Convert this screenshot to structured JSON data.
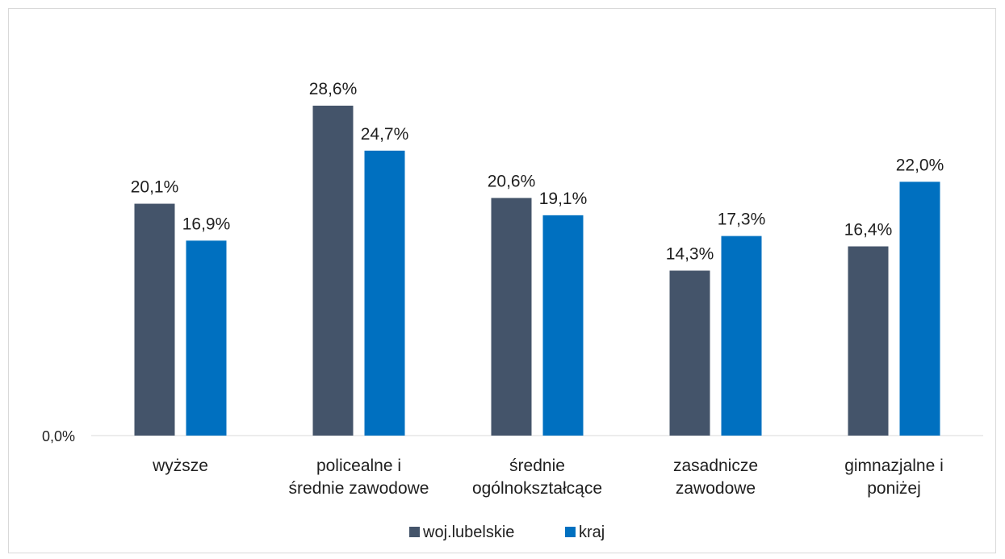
{
  "chart_data": {
    "type": "bar",
    "categories": [
      [
        "wyższe"
      ],
      [
        "policealne i",
        "średnie zawodowe"
      ],
      [
        "średnie",
        "ogólnokształcące"
      ],
      [
        "zasadnicze",
        "zawodowe"
      ],
      [
        "gimnazjalne i",
        "poniżej"
      ]
    ],
    "series": [
      {
        "name": "woj.lubelskie",
        "color": "#44546a",
        "values": [
          20.1,
          28.6,
          20.6,
          14.3,
          16.4
        ],
        "labels": [
          "20,1%",
          "28,6%",
          "20,6%",
          "14,3%",
          "16,4%"
        ]
      },
      {
        "name": "kraj",
        "color": "#0070c0",
        "values": [
          16.9,
          24.7,
          19.1,
          17.3,
          22.0
        ],
        "labels": [
          "16,9%",
          "24,7%",
          "19,1%",
          "17,3%",
          "22,0%"
        ]
      }
    ],
    "y_tick_label": "0,0%",
    "ylim": [
      0,
      34
    ],
    "grid": false,
    "legend_position": "bottom"
  }
}
